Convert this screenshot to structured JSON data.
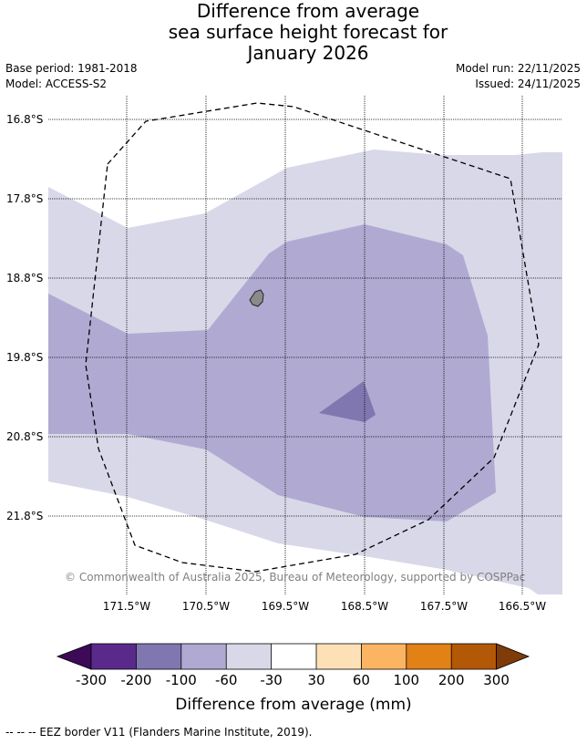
{
  "title": {
    "line1": "Difference from average",
    "line2": "sea surface height forecast for",
    "line3": "January 2026"
  },
  "meta": {
    "base_period": "Base period: 1981-2018",
    "model": "Model: ACCESS-S2",
    "model_run": "Model run: 22/11/2025",
    "issued": "Issued: 24/11/2025"
  },
  "map": {
    "lat_labels": [
      "16.8°S",
      "17.8°S",
      "18.8°S",
      "19.8°S",
      "20.8°S",
      "21.8°S"
    ],
    "lon_labels": [
      "171.5°W",
      "170.5°W",
      "169.5°W",
      "168.5°W",
      "167.5°W",
      "166.5°W"
    ],
    "copyright": "© Commonwealth of Australia 2025, Bureau of Meteorology, supported by COSPPac",
    "colors": {
      "band_m60_m30": "#d8d8e9",
      "band_m100_m60": "#b0aad2",
      "band_m200_m100": "#8077b1",
      "island": "#8a8a8a",
      "grid": "#000000"
    }
  },
  "colorbar": {
    "tick_labels": [
      "-300",
      "-200",
      "-100",
      "-60",
      "-30",
      "30",
      "60",
      "100",
      "200",
      "300"
    ],
    "colors": [
      "#3d0a57",
      "#5a2a8a",
      "#8077b1",
      "#b0aad2",
      "#d8d8e9",
      "#ffffff",
      "#fee0b7",
      "#fbb562",
      "#e18116",
      "#b35806",
      "#7f3b08"
    ],
    "title": "Difference from average (mm)"
  },
  "footnote": "--  --  -- EEZ border V11 (Flanders Marine Institute, 2019)."
}
